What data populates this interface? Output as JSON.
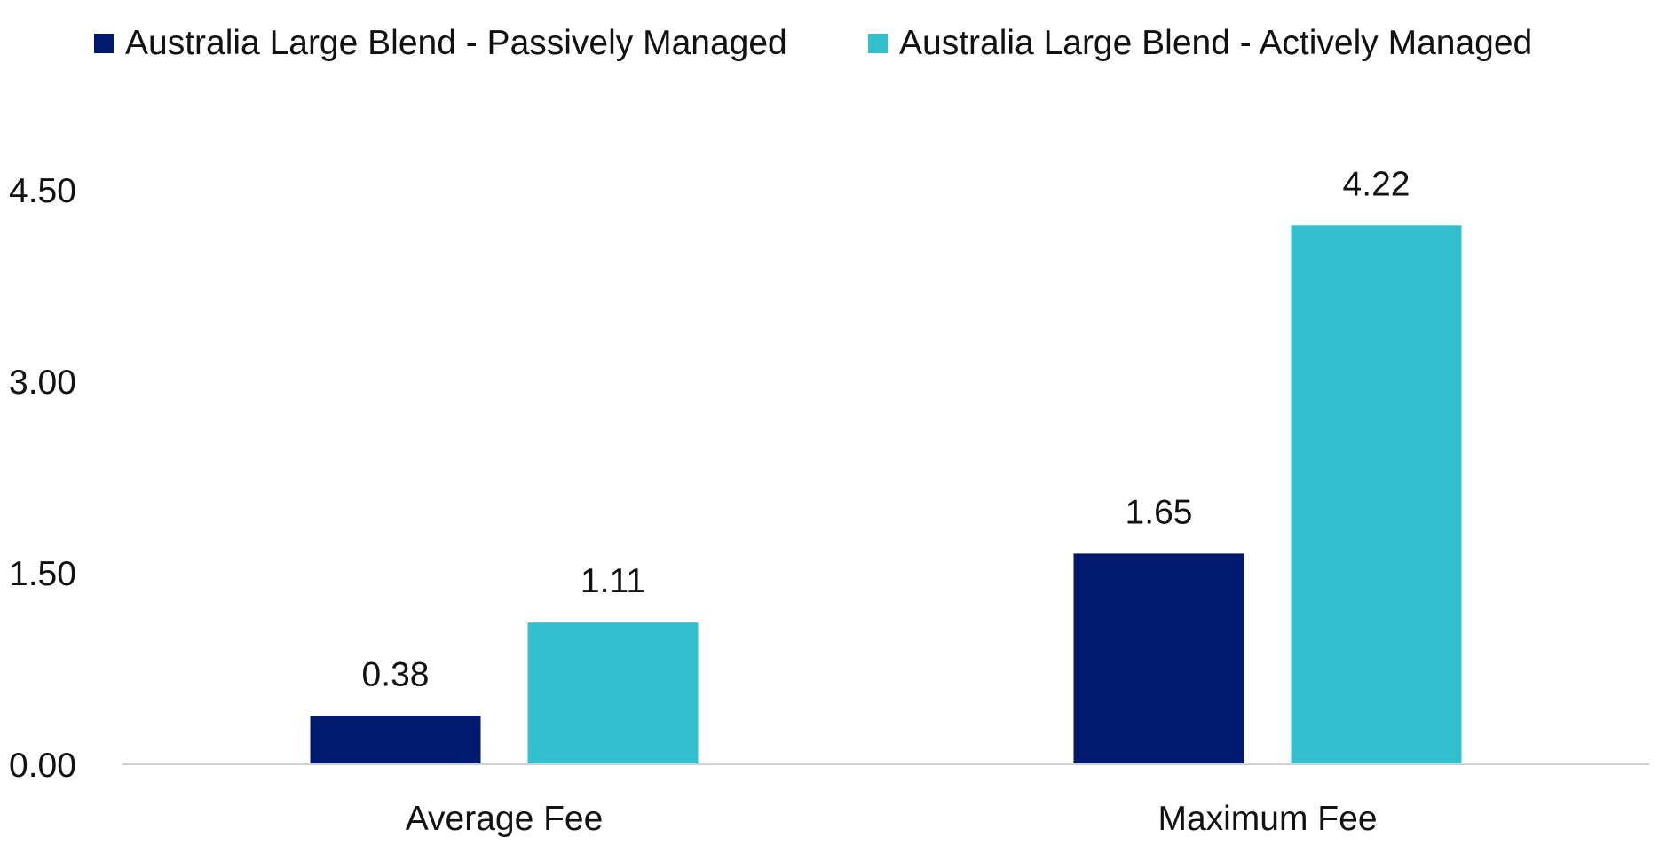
{
  "chart_data": {
    "type": "bar",
    "title": "",
    "xlabel": "",
    "ylabel": "",
    "categories": [
      "Average Fee",
      "Maximum Fee"
    ],
    "series": [
      {
        "name": "Australia Large Blend - Passively Managed",
        "color": "#001A70",
        "values": [
          0.38,
          1.65
        ],
        "labels": [
          "0.38",
          "1.65"
        ]
      },
      {
        "name": "Australia Large Blend - Actively Managed",
        "color": "#32BFCE",
        "values": [
          1.11,
          4.22
        ],
        "labels": [
          "1.11",
          "4.22"
        ]
      }
    ],
    "ylim": [
      0,
      4.5
    ],
    "yticks": [
      "0.00",
      "1.50",
      "3.00",
      "4.50"
    ],
    "grid": false,
    "legend_position": "top",
    "axis_color": "#D0D0D0"
  }
}
